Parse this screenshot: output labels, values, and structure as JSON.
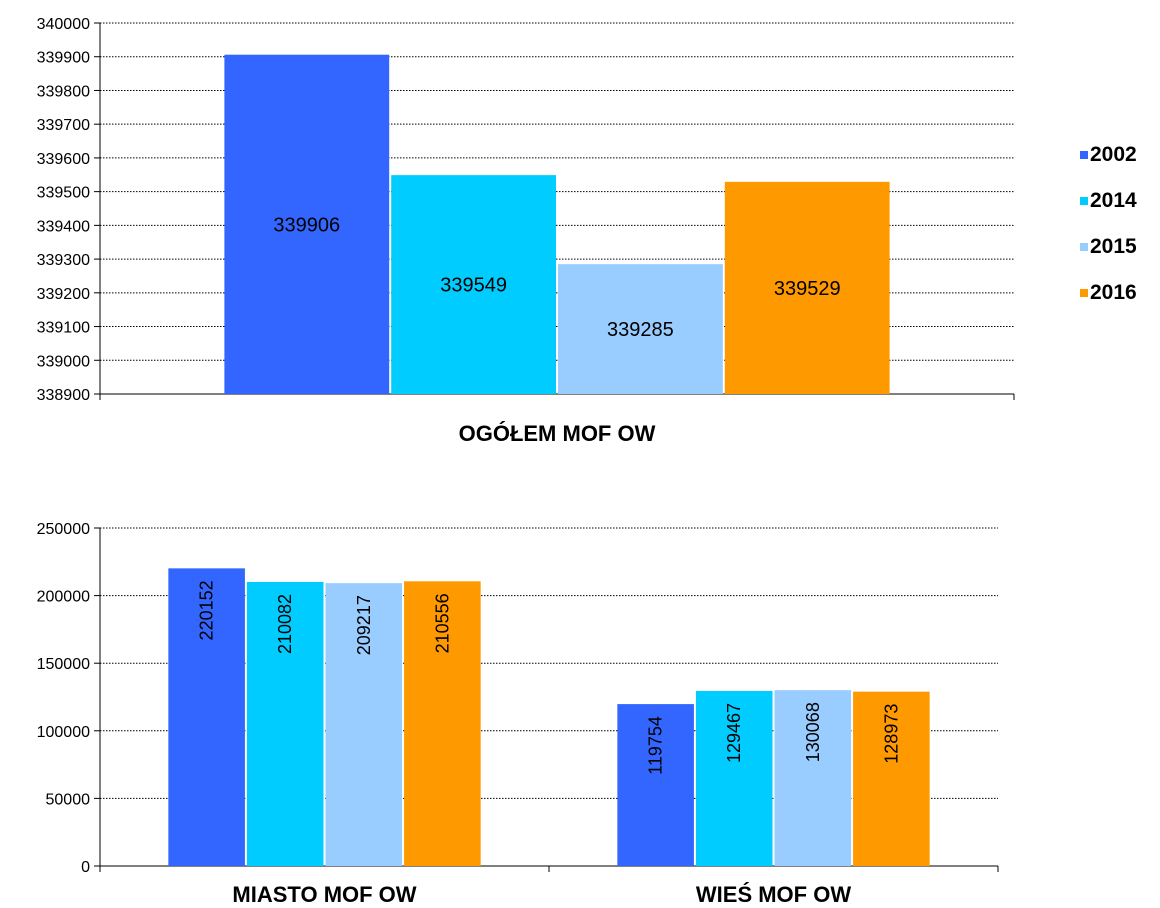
{
  "legend": {
    "items": [
      {
        "label": "2002",
        "color": "#3366FF"
      },
      {
        "label": "2014",
        "color": "#00CCFF"
      },
      {
        "label": "2015",
        "color": "#99CCFF"
      },
      {
        "label": "2016",
        "color": "#FF9900"
      }
    ]
  },
  "chart_data": [
    {
      "type": "bar",
      "title": "",
      "categories": [
        "OGÓŁEM MOF OW"
      ],
      "series": [
        {
          "name": "2002",
          "values": [
            339906
          ]
        },
        {
          "name": "2014",
          "values": [
            339549
          ]
        },
        {
          "name": "2015",
          "values": [
            339285
          ]
        },
        {
          "name": "2016",
          "values": [
            339529
          ]
        }
      ],
      "ylim": [
        338900,
        340000
      ],
      "yticks": [
        338900,
        339000,
        339100,
        339200,
        339300,
        339400,
        339500,
        339600,
        339700,
        339800,
        339900,
        340000
      ],
      "xlabel": "",
      "ylabel": "",
      "grid": true,
      "data_labels": "horizontal",
      "legend": "right"
    },
    {
      "type": "bar",
      "title": "",
      "categories": [
        "MIASTO MOF OW",
        "WIEŚ MOF OW"
      ],
      "series": [
        {
          "name": "2002",
          "values": [
            220152,
            119754
          ]
        },
        {
          "name": "2014",
          "values": [
            210082,
            129467
          ]
        },
        {
          "name": "2015",
          "values": [
            209217,
            130068
          ]
        },
        {
          "name": "2016",
          "values": [
            210556,
            128973
          ]
        }
      ],
      "ylim": [
        0,
        250000
      ],
      "yticks": [
        0,
        50000,
        100000,
        150000,
        200000,
        250000
      ],
      "xlabel": "",
      "ylabel": "",
      "grid": true,
      "data_labels": "vertical",
      "legend": "right"
    }
  ]
}
